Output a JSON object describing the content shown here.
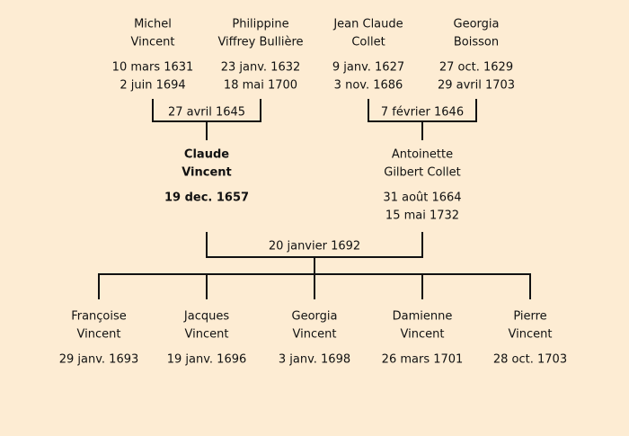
{
  "grandparents": [
    {
      "name": [
        "Michel",
        "Vincent"
      ],
      "born": "10 mars 1631",
      "died": "2 juin 1694"
    },
    {
      "name": [
        "Philippine",
        "Viffrey Bullière"
      ],
      "born": "23 janv. 1632",
      "died": "18 mai 1700"
    },
    {
      "name": [
        "Jean Claude",
        "Collet"
      ],
      "born": "9 janv. 1627",
      "died": "3 nov. 1686"
    },
    {
      "name": [
        "Georgia",
        "Boisson"
      ],
      "born": "27 oct. 1629",
      "died": "29 avril 1703"
    }
  ],
  "grandparent_marriages": [
    "27 avril 1645",
    "7 février 1646"
  ],
  "parents": [
    {
      "name": [
        "Claude",
        "Vincent"
      ],
      "born": "19 dec. 1657"
    },
    {
      "name": [
        "Antoinette",
        "Gilbert Collet"
      ],
      "born": "31 août 1664",
      "died": "15 mai 1732"
    }
  ],
  "marriage": "20 janvier 1692",
  "children": [
    {
      "name": [
        "Françoise",
        "Vincent"
      ],
      "born": "29 janv. 1693"
    },
    {
      "name": [
        "Jacques",
        "Vincent"
      ],
      "born": "19 janv. 1696"
    },
    {
      "name": [
        "Georgia",
        "Vincent"
      ],
      "born": "3 janv. 1698"
    },
    {
      "name": [
        "Damienne",
        "Vincent"
      ],
      "born": "26 mars 1701"
    },
    {
      "name": [
        "Pierre",
        "Vincent"
      ],
      "born": "28 oct. 1703"
    }
  ]
}
